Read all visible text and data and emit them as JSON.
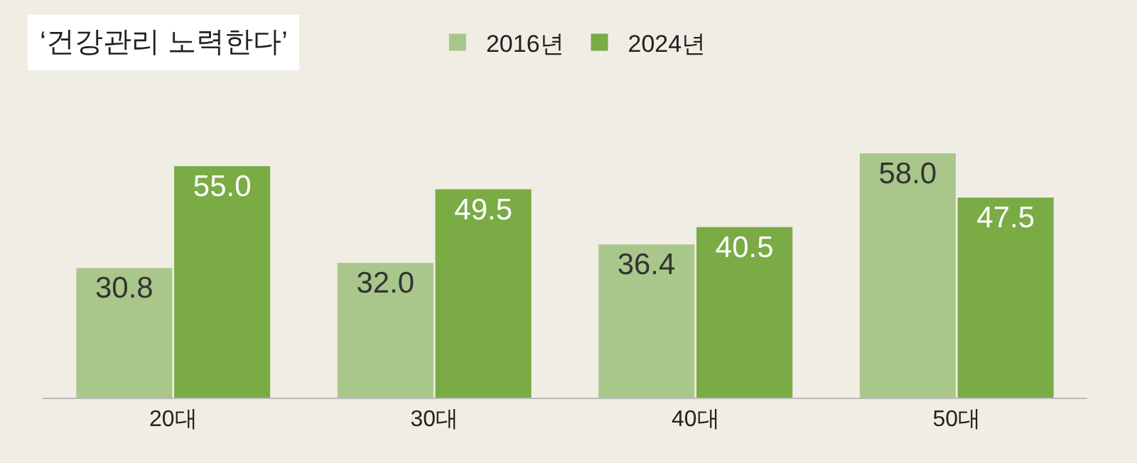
{
  "chart_data": {
    "type": "bar",
    "title": "‘건강관리 노력한다’",
    "categories": [
      "20대",
      "30대",
      "40대",
      "50대"
    ],
    "series": [
      {
        "name": "2016년",
        "color": "#a9c78b",
        "values": [
          30.8,
          32.0,
          36.4,
          58.0
        ],
        "value_labels": [
          "30.8",
          "32.0",
          "36.4",
          "58.0"
        ]
      },
      {
        "name": "2024년",
        "color": "#7aab45",
        "values": [
          55.0,
          49.5,
          40.5,
          47.5
        ],
        "value_labels": [
          "55.0",
          "49.5",
          "40.5",
          "47.5"
        ]
      }
    ],
    "legend": "top",
    "grid": false
  }
}
